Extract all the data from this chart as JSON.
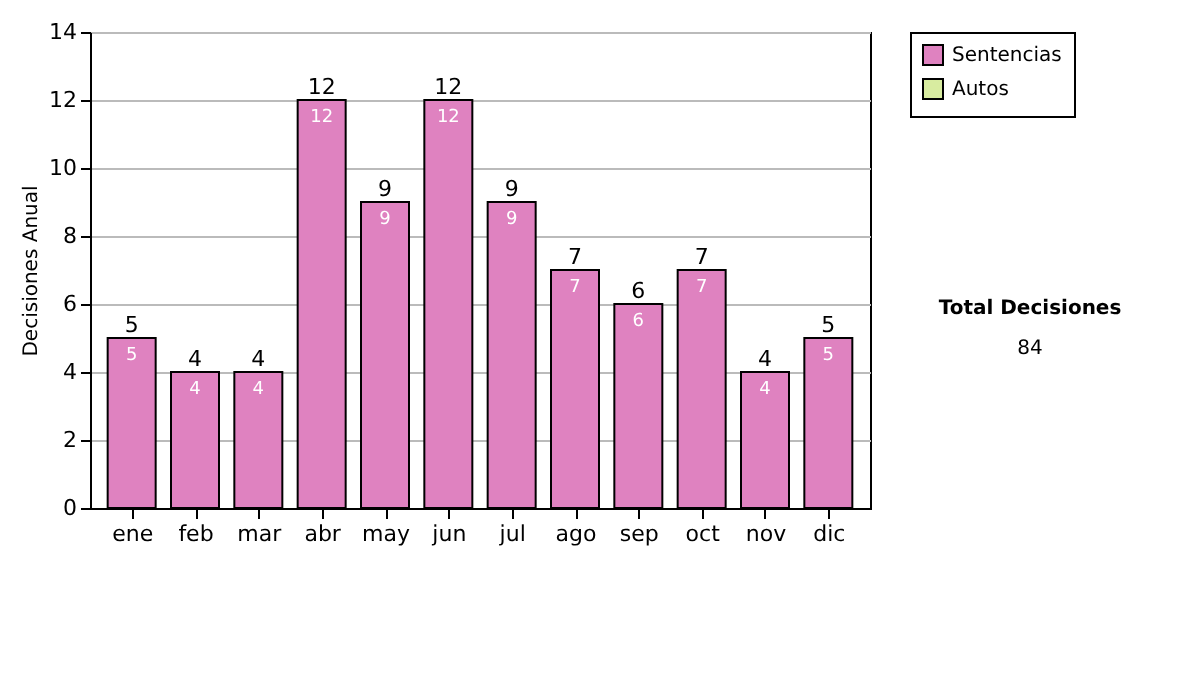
{
  "chart_data": {
    "type": "bar",
    "ylabel": "Decisiones Anual",
    "categories": [
      "ene",
      "feb",
      "mar",
      "abr",
      "may",
      "jun",
      "jul",
      "ago",
      "sep",
      "oct",
      "nov",
      "dic"
    ],
    "series": [
      {
        "name": "Sentencias",
        "color": "#df82c0",
        "values": [
          5,
          4,
          4,
          12,
          9,
          12,
          9,
          7,
          6,
          7,
          4,
          5
        ],
        "value_labels": [
          "5",
          "4",
          "4",
          "12",
          "9",
          "12",
          "9",
          "7",
          "6",
          "7",
          "4",
          "5"
        ]
      },
      {
        "name": "Autos",
        "color": "#d8eca0",
        "values": [
          0,
          0,
          0,
          0,
          0,
          0,
          0,
          0,
          0,
          0,
          0,
          0
        ]
      }
    ],
    "stacked": true,
    "totals": [
      "5",
      "4",
      "4",
      "12",
      "9",
      "12",
      "9",
      "7",
      "6",
      "7",
      "4",
      "5"
    ],
    "ylim": [
      0,
      14
    ],
    "yticks": [
      0,
      2,
      4,
      6,
      8,
      10,
      12,
      14
    ],
    "grid": "y",
    "legend": "right",
    "annotations": [
      "Total Decisiones",
      "84"
    ]
  }
}
